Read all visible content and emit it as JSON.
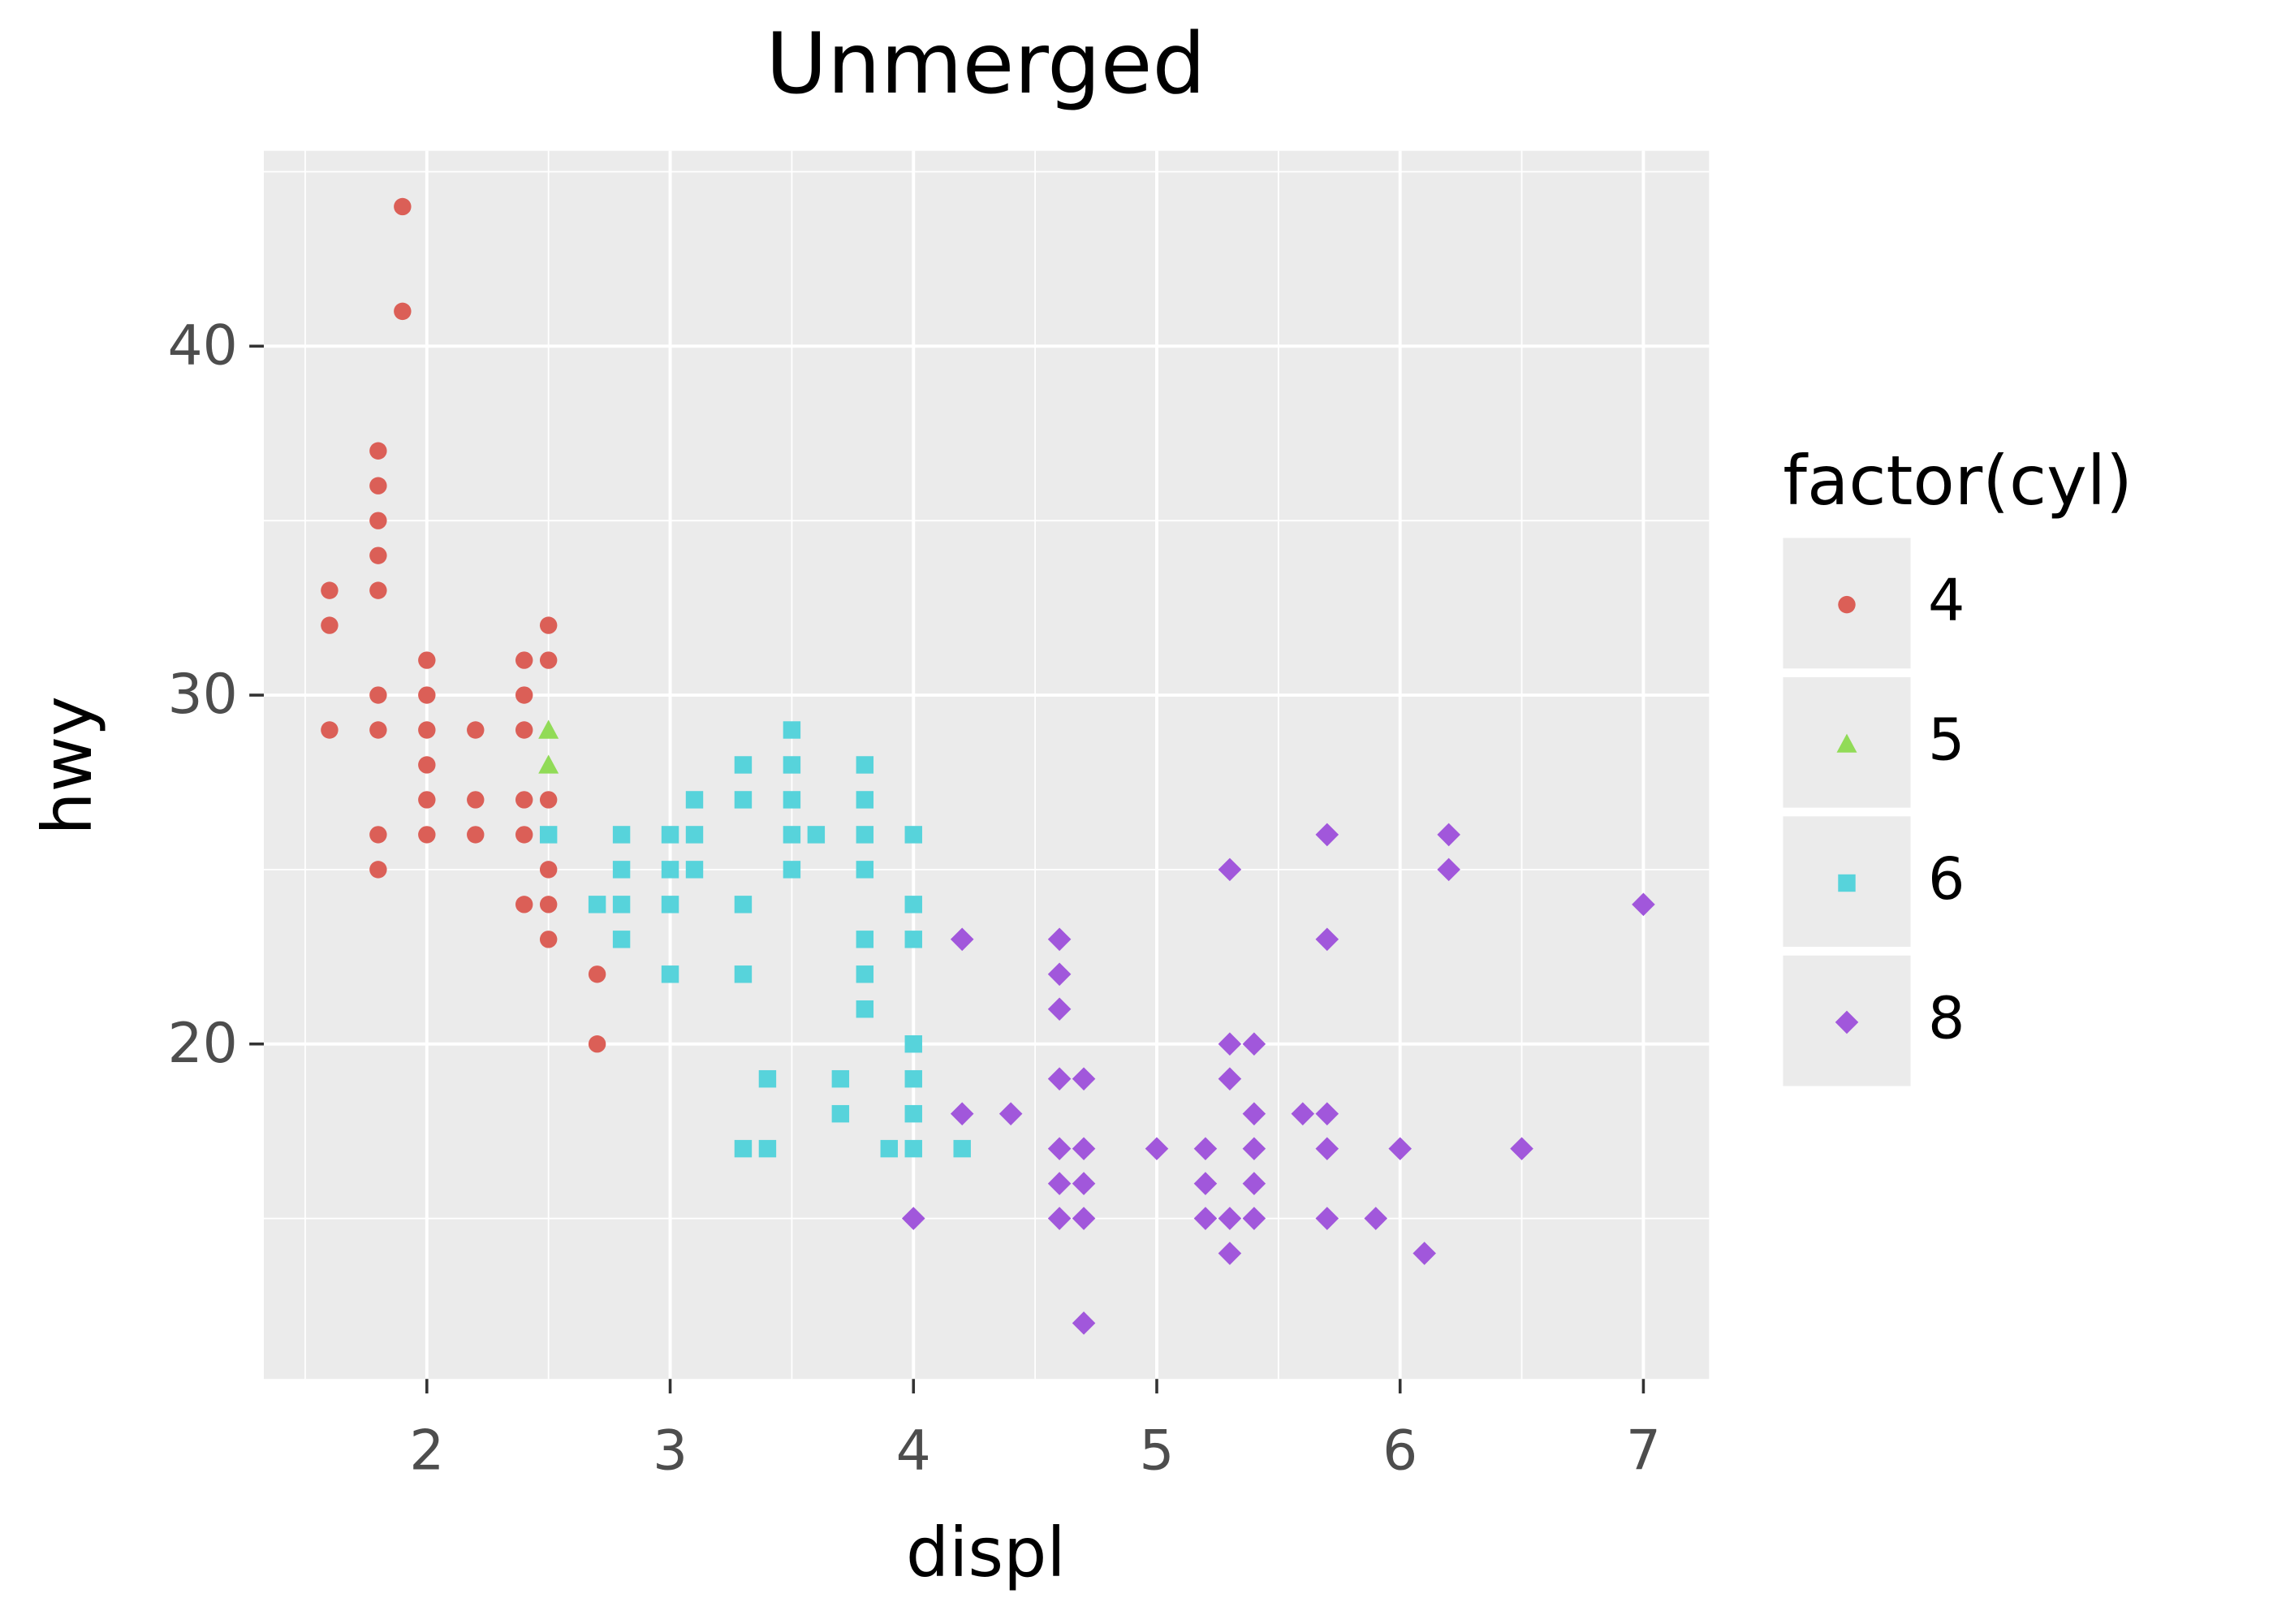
{
  "chart_data": {
    "type": "scatter",
    "title": "Unmerged",
    "x_label": "displ",
    "y_label": "hwy",
    "legend_title": "factor(cyl)",
    "legend_position": "right",
    "grid": true,
    "xlim": [
      1.33,
      7.27
    ],
    "ylim": [
      10.4,
      45.6
    ],
    "xticks": [
      2,
      3,
      4,
      5,
      6,
      7
    ],
    "yticks": [
      20,
      30,
      40
    ],
    "xminor": [
      1.5,
      2.5,
      3.5,
      4.5,
      5.5,
      6.5
    ],
    "yminor": [
      15,
      25,
      35,
      45
    ],
    "series": [
      {
        "name": "4",
        "color": "#DB5F57",
        "shape": "circle",
        "x": [
          1.6,
          1.6,
          1.6,
          1.8,
          1.8,
          1.8,
          1.8,
          1.8,
          1.8,
          1.8,
          1.8,
          1.8,
          1.9,
          1.9,
          2.0,
          2.0,
          2.0,
          2.0,
          2.0,
          2.0,
          2.2,
          2.2,
          2.2,
          2.4,
          2.4,
          2.4,
          2.4,
          2.4,
          2.4,
          2.5,
          2.5,
          2.5,
          2.5,
          2.5,
          2.5,
          2.7,
          2.7
        ],
        "values": [
          33,
          32,
          29,
          37,
          36,
          35,
          34,
          33,
          30,
          29,
          26,
          25,
          44,
          41,
          31,
          30,
          29,
          28,
          27,
          26,
          29,
          27,
          26,
          31,
          30,
          29,
          27,
          26,
          24,
          32,
          31,
          27,
          25,
          24,
          23,
          22,
          20
        ]
      },
      {
        "name": "5",
        "color": "#91DB57",
        "shape": "triangle",
        "x": [
          2.5,
          2.5
        ],
        "values": [
          29,
          28
        ]
      },
      {
        "name": "6",
        "color": "#57D3DB",
        "shape": "square",
        "x": [
          2.5,
          2.7,
          2.8,
          2.8,
          2.8,
          2.8,
          3.0,
          3.0,
          3.0,
          3.0,
          3.1,
          3.1,
          3.1,
          3.3,
          3.3,
          3.3,
          3.3,
          3.3,
          3.4,
          3.4,
          3.5,
          3.5,
          3.5,
          3.5,
          3.5,
          3.6,
          3.7,
          3.7,
          3.8,
          3.8,
          3.8,
          3.8,
          3.8,
          3.8,
          3.8,
          3.9,
          4.0,
          4.0,
          4.0,
          4.0,
          4.0,
          4.0,
          4.0,
          4.2
        ],
        "values": [
          26,
          24,
          26,
          25,
          24,
          23,
          26,
          25,
          24,
          22,
          27,
          26,
          25,
          28,
          27,
          24,
          22,
          17,
          19,
          17,
          29,
          28,
          27,
          26,
          25,
          26,
          19,
          18,
          28,
          27,
          26,
          25,
          23,
          22,
          21,
          17,
          26,
          24,
          23,
          20,
          19,
          18,
          17,
          17
        ]
      },
      {
        "name": "8",
        "color": "#A157DB",
        "shape": "diamond",
        "x": [
          4.0,
          4.2,
          4.2,
          4.4,
          4.6,
          4.6,
          4.6,
          4.6,
          4.6,
          4.6,
          4.6,
          4.7,
          4.7,
          4.7,
          4.7,
          4.7,
          5.0,
          5.2,
          5.2,
          5.2,
          5.3,
          5.3,
          5.3,
          5.3,
          5.3,
          5.4,
          5.4,
          5.4,
          5.4,
          5.4,
          5.6,
          5.7,
          5.7,
          5.7,
          5.7,
          5.7,
          5.9,
          6.0,
          6.1,
          6.2,
          6.2,
          6.5,
          7.0
        ],
        "values": [
          15,
          23,
          18,
          18,
          23,
          22,
          21,
          19,
          17,
          16,
          15,
          19,
          17,
          16,
          15,
          12,
          17,
          17,
          16,
          15,
          25,
          20,
          19,
          15,
          14,
          20,
          18,
          17,
          16,
          15,
          18,
          26,
          23,
          18,
          17,
          15,
          15,
          17,
          14,
          26,
          25,
          17,
          24
        ]
      }
    ]
  }
}
